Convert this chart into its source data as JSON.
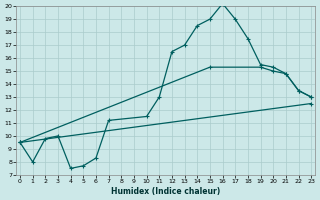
{
  "xlabel": "Humidex (Indice chaleur)",
  "bg_color": "#cce8e8",
  "grid_color": "#aacccc",
  "line_color": "#005f5f",
  "ylim": [
    7,
    20
  ],
  "xlim": [
    -0.3,
    23.3
  ],
  "yticks": [
    7,
    8,
    9,
    10,
    11,
    12,
    13,
    14,
    15,
    16,
    17,
    18,
    19,
    20
  ],
  "xticks": [
    0,
    1,
    2,
    3,
    4,
    5,
    6,
    7,
    8,
    9,
    10,
    11,
    12,
    13,
    14,
    15,
    16,
    17,
    18,
    19,
    20,
    21,
    22,
    23
  ],
  "line1_x": [
    0,
    1,
    2,
    3,
    4,
    5,
    6,
    7,
    10,
    11,
    12,
    13,
    14,
    15,
    16,
    17,
    18,
    19,
    20,
    21,
    22,
    23
  ],
  "line1_y": [
    9.5,
    8.0,
    9.8,
    10.0,
    7.5,
    7.7,
    8.3,
    11.2,
    11.5,
    13.0,
    16.5,
    17.0,
    18.5,
    19.0,
    20.2,
    19.0,
    17.5,
    15.5,
    15.3,
    14.8,
    13.5,
    13.0
  ],
  "line2_x": [
    0,
    15,
    19,
    20,
    21,
    22,
    23
  ],
  "line2_y": [
    9.5,
    15.3,
    15.3,
    15.0,
    14.8,
    13.5,
    13.0
  ],
  "line3_x": [
    0,
    23
  ],
  "line3_y": [
    9.5,
    12.5
  ]
}
